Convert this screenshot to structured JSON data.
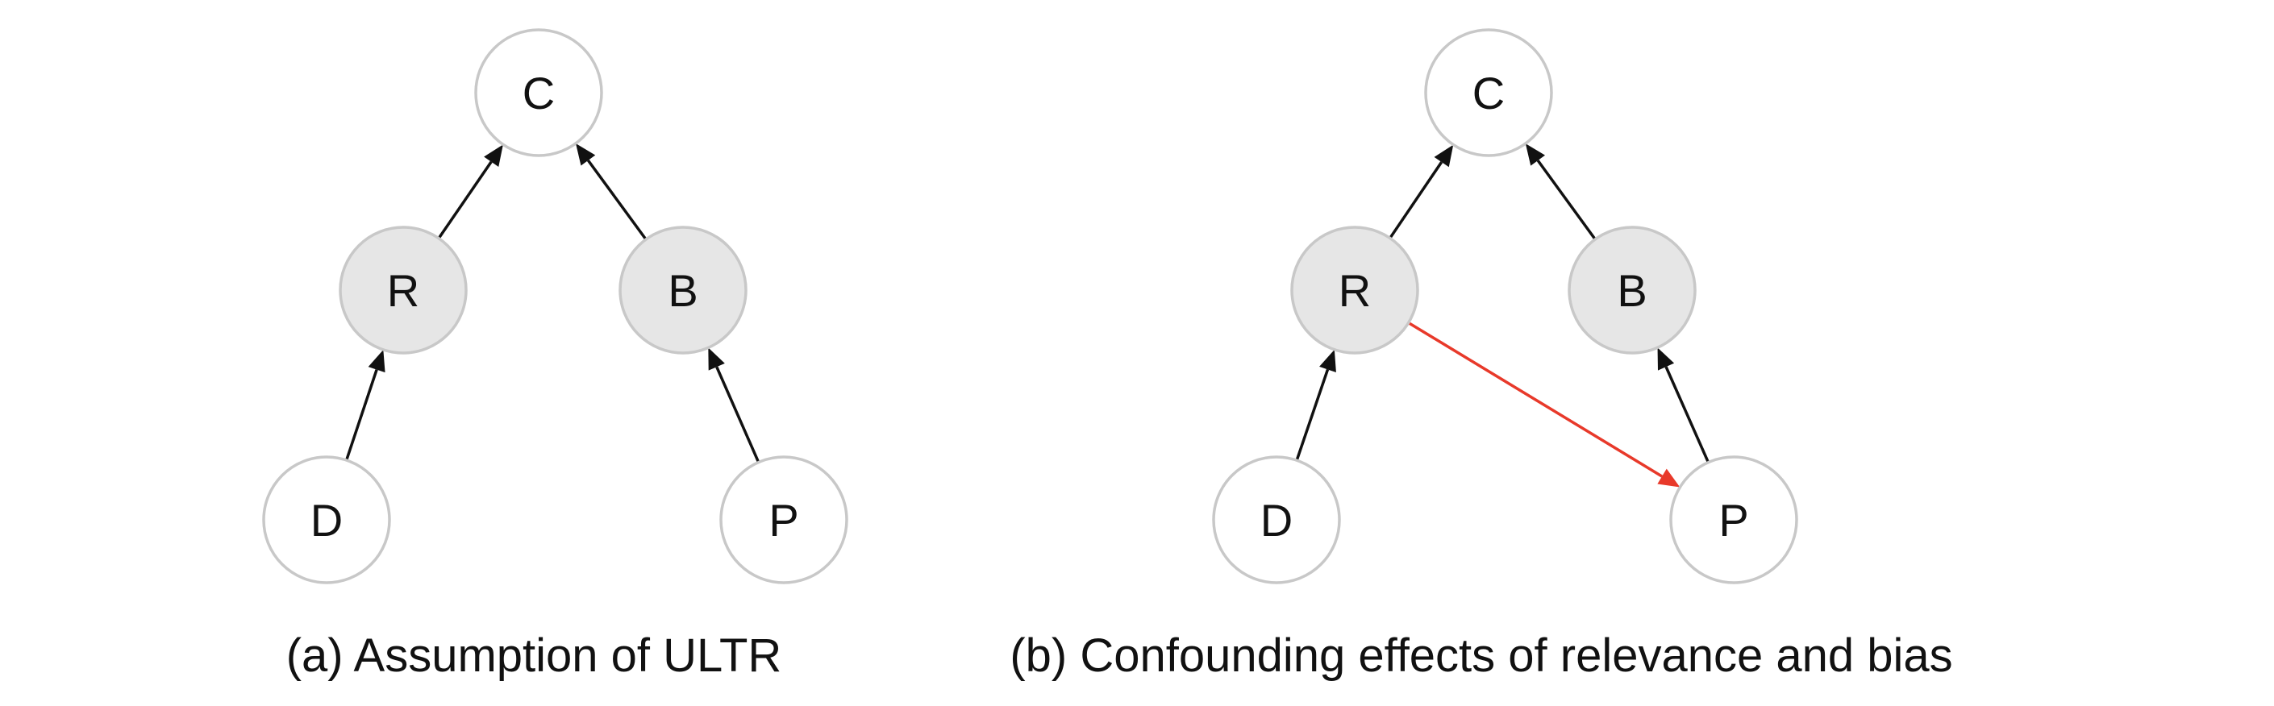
{
  "colors": {
    "node_fill_default": "#ffffff",
    "node_fill_shaded": "#e6e6e6",
    "node_stroke": "#c8c8c8",
    "edge_default": "#111111",
    "edge_highlight": "#e8392a"
  },
  "diagrams": [
    {
      "id": "a",
      "caption": "(a) Assumption of ULTR",
      "nodes": [
        {
          "id": "C",
          "label": "C",
          "shaded": false
        },
        {
          "id": "R",
          "label": "R",
          "shaded": true
        },
        {
          "id": "B",
          "label": "B",
          "shaded": true
        },
        {
          "id": "D",
          "label": "D",
          "shaded": false
        },
        {
          "id": "P",
          "label": "P",
          "shaded": false
        }
      ],
      "edges": [
        {
          "from": "R",
          "to": "C",
          "highlight": false
        },
        {
          "from": "B",
          "to": "C",
          "highlight": false
        },
        {
          "from": "D",
          "to": "R",
          "highlight": false
        },
        {
          "from": "P",
          "to": "B",
          "highlight": false
        }
      ]
    },
    {
      "id": "b",
      "caption": "(b) Confounding effects of relevance and bias",
      "nodes": [
        {
          "id": "C",
          "label": "C",
          "shaded": false
        },
        {
          "id": "R",
          "label": "R",
          "shaded": true
        },
        {
          "id": "B",
          "label": "B",
          "shaded": true
        },
        {
          "id": "D",
          "label": "D",
          "shaded": false
        },
        {
          "id": "P",
          "label": "P",
          "shaded": false
        }
      ],
      "edges": [
        {
          "from": "R",
          "to": "C",
          "highlight": false
        },
        {
          "from": "B",
          "to": "C",
          "highlight": false
        },
        {
          "from": "D",
          "to": "R",
          "highlight": false
        },
        {
          "from": "P",
          "to": "B",
          "highlight": false
        },
        {
          "from": "R",
          "to": "P",
          "highlight": true
        }
      ]
    }
  ]
}
